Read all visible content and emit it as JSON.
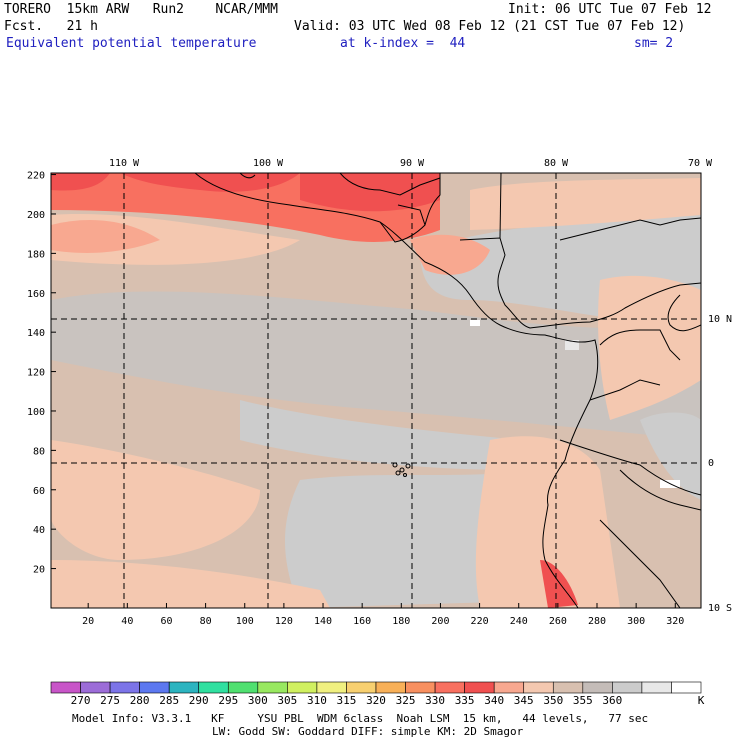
{
  "header": {
    "model": "TORERO  15km ARW   Run2    NCAR/MMM",
    "init": "Init: 06 UTC Tue 07 Feb 12",
    "fcst": "Fcst.   21 h",
    "valid": "Valid: 03 UTC Wed 08 Feb 12 (21 CST Tue 07 Feb 12)",
    "field": "Equivalent potential temperature",
    "level": "at k-index =  44",
    "smooth": "sm= 2"
  },
  "map": {
    "top_lon_labels": [
      "110 W",
      "100 W",
      "90 W",
      "80 W",
      "70 W"
    ],
    "right_lat_labels": [
      "10 N",
      "0",
      "10 S"
    ],
    "y_ticks": [
      "20",
      "40",
      "60",
      "80",
      "100",
      "120",
      "140",
      "160",
      "180",
      "200",
      "220"
    ],
    "x_ticks": [
      "20",
      "40",
      "60",
      "80",
      "100",
      "120",
      "140",
      "160",
      "180",
      "200",
      "220",
      "240",
      "260",
      "280",
      "300",
      "320"
    ]
  },
  "colorbar": {
    "colors": [
      "#c855c8",
      "#9c6cd8",
      "#7c74e8",
      "#5c78f0",
      "#2cb4c0",
      "#30e0a0",
      "#50e070",
      "#98e860",
      "#d0f060",
      "#f0f080",
      "#f8d070",
      "#f8b058",
      "#f89060",
      "#f87060",
      "#f05050",
      "#f8a890",
      "#f4c8b0",
      "#d8c0b0",
      "#c4bcb8",
      "#cccccc",
      "#e8e8e8",
      "#ffffff"
    ],
    "labels": [
      "270",
      "275",
      "280",
      "285",
      "290",
      "295",
      "300",
      "305",
      "310",
      "315",
      "320",
      "325",
      "330",
      "335",
      "340",
      "345",
      "350",
      "355",
      "360",
      "K"
    ]
  },
  "footer": {
    "line1": "Model Info: V3.3.1   KF     YSU PBL  WDM 6class  Noah LSM  15 km,   44 levels,   77 sec",
    "line2": "LW: Godd SW: Goddard DIFF: simple KM: 2D Smagor"
  }
}
